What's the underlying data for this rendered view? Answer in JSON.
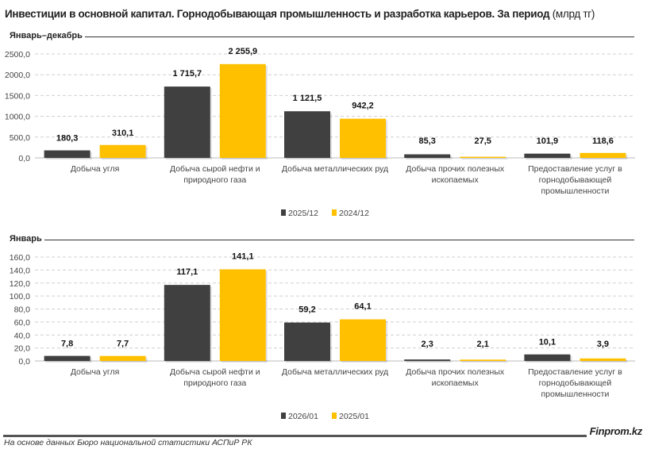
{
  "title": {
    "main": "Инвестиции в основной капитал. Горнодобывающая промышленность и разработка карьеров. За период",
    "unit": "(млрд тг)"
  },
  "colors": {
    "series_current": "#404040",
    "series_previous": "#FFC000"
  },
  "chart_data": [
    {
      "type": "bar",
      "section_label": "Январь–декабрь",
      "categories": [
        [
          "Добыча угля"
        ],
        [
          "Добыча сырой нефти и",
          "природного газа"
        ],
        [
          "Добыча металлических руд"
        ],
        [
          "Добыча прочих полезных",
          "ископаемых"
        ],
        [
          "Предоставление услуг в",
          "горнодобывающей",
          "промышленности"
        ]
      ],
      "series": [
        {
          "name": "2025/12",
          "values": [
            180.3,
            1715.7,
            1121.5,
            85.3,
            101.9
          ],
          "labels": [
            "180,3",
            "1 715,7",
            "1 121,5",
            "85,3",
            "101,9"
          ]
        },
        {
          "name": "2024/12",
          "values": [
            310.1,
            2255.9,
            942.2,
            27.5,
            118.6
          ],
          "labels": [
            "310,1",
            "2 255,9",
            "942,2",
            "27,5",
            "118,6"
          ]
        }
      ],
      "yticks": [
        "0,0",
        "500,0",
        "1000,0",
        "1500,0",
        "2000,0",
        "2500,0"
      ],
      "ylim": [
        0,
        2500
      ],
      "grid": true,
      "legend": "bottom-center"
    },
    {
      "type": "bar",
      "section_label": "Январь",
      "categories": [
        [
          "Добыча угля"
        ],
        [
          "Добыча сырой нефти и",
          "природного газа"
        ],
        [
          "Добыча металлических руд"
        ],
        [
          "Добыча прочих полезных",
          "ископаемых"
        ],
        [
          "Предоставление услуг в",
          "горнодобывающей",
          "промышленности"
        ]
      ],
      "series": [
        {
          "name": "2026/01",
          "values": [
            7.8,
            117.1,
            59.2,
            2.3,
            10.1
          ],
          "labels": [
            "7,8",
            "117,1",
            "59,2",
            "2,3",
            "10,1"
          ]
        },
        {
          "name": "2025/01",
          "values": [
            7.7,
            141.1,
            64.1,
            2.1,
            3.9
          ],
          "labels": [
            "7,7",
            "141,1",
            "64,1",
            "2,1",
            "3,9"
          ]
        }
      ],
      "yticks": [
        "0,0",
        "20,0",
        "40,0",
        "60,0",
        "80,0",
        "100,0",
        "120,0",
        "140,0",
        "160,0"
      ],
      "ylim": [
        0,
        160
      ],
      "grid": true,
      "legend": "bottom-center"
    }
  ],
  "footer": {
    "brand": "Finprom.kz",
    "source": "На основе данных Бюро национальной статистики АСПиР РК"
  }
}
